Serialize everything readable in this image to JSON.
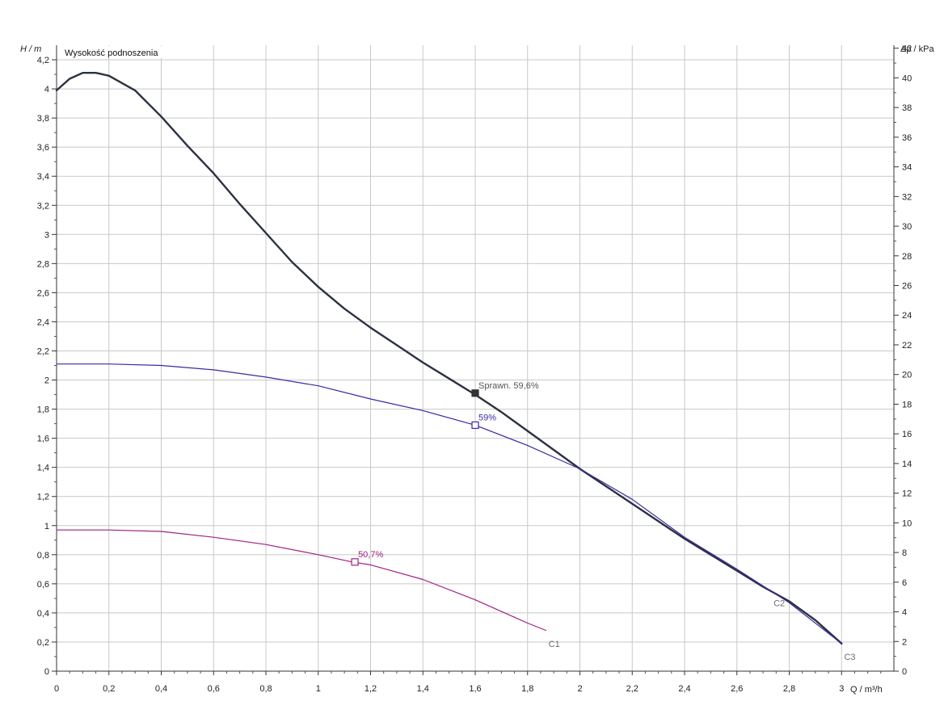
{
  "chart_data": {
    "type": "line",
    "title": "Wysokość podnoszenia",
    "ylabel": "H / m",
    "ylabel_right": "Δp / kPa",
    "xlabel": "Q / m³/h",
    "xlim": [
      0,
      3.2
    ],
    "ylim": [
      0,
      4.3
    ],
    "ylim_right": [
      0,
      42.2
    ],
    "grid": true,
    "x_ticks": [
      "0",
      "0,2",
      "0,4",
      "0,6",
      "0,8",
      "1",
      "1,2",
      "1,4",
      "1,6",
      "1,8",
      "2",
      "2,2",
      "2,4",
      "2,6",
      "2,8",
      "3"
    ],
    "y_ticks": [
      "0",
      "0,2",
      "0,4",
      "0,6",
      "0,8",
      "1",
      "1,2",
      "1,4",
      "1,6",
      "1,8",
      "2",
      "2,2",
      "2,4",
      "2,6",
      "2,8",
      "3",
      "3,2",
      "3,4",
      "3,6",
      "3,8",
      "4",
      "4,2"
    ],
    "y_ticks_right": [
      "0",
      "2",
      "4",
      "6",
      "8",
      "10",
      "12",
      "14",
      "16",
      "18",
      "20",
      "22",
      "24",
      "26",
      "28",
      "30",
      "32",
      "34",
      "36",
      "38",
      "40",
      "42"
    ],
    "series": [
      {
        "name": "C3",
        "color": "#2b3140",
        "x": [
          0,
          0.05,
          0.1,
          0.15,
          0.2,
          0.3,
          0.4,
          0.5,
          0.6,
          0.7,
          0.8,
          0.9,
          1.0,
          1.1,
          1.2,
          1.3,
          1.4,
          1.5,
          1.6,
          1.7,
          1.8,
          1.9,
          2.0,
          2.1,
          2.2,
          2.3,
          2.4,
          2.5,
          2.6,
          2.7,
          2.8,
          2.9,
          3.0
        ],
        "y": [
          3.99,
          4.07,
          4.11,
          4.11,
          4.09,
          3.99,
          3.81,
          3.61,
          3.42,
          3.21,
          3.01,
          2.81,
          2.64,
          2.49,
          2.36,
          2.24,
          2.12,
          2.01,
          1.9,
          1.78,
          1.65,
          1.52,
          1.39,
          1.27,
          1.15,
          1.03,
          0.91,
          0.8,
          0.69,
          0.58,
          0.48,
          0.35,
          0.19
        ],
        "label": "C3"
      },
      {
        "name": "C2",
        "color": "#3b2aa3",
        "x": [
          0,
          0.2,
          0.4,
          0.6,
          0.8,
          1.0,
          1.2,
          1.4,
          1.6,
          1.8,
          2.0,
          2.2,
          2.4,
          2.6,
          2.8,
          3.0
        ],
        "y": [
          2.11,
          2.11,
          2.1,
          2.07,
          2.02,
          1.96,
          1.87,
          1.79,
          1.69,
          1.55,
          1.39,
          1.18,
          0.92,
          0.7,
          0.47,
          0.19
        ],
        "label": "C2"
      },
      {
        "name": "C1",
        "color": "#a01f86",
        "x": [
          0,
          0.2,
          0.4,
          0.6,
          0.8,
          1.0,
          1.13,
          1.2,
          1.4,
          1.6,
          1.8,
          1.87
        ],
        "y": [
          0.97,
          0.97,
          0.96,
          0.92,
          0.87,
          0.8,
          0.75,
          0.73,
          0.63,
          0.49,
          0.33,
          0.28
        ],
        "label": "C1"
      }
    ],
    "markers": [
      {
        "x": 1.6,
        "y": 1.91,
        "label": "Sprawn.  59,6%",
        "color": "#333333",
        "filled": true
      },
      {
        "x": 1.6,
        "y": 1.69,
        "label": "59%",
        "color": "#3b2aa3",
        "filled": false
      },
      {
        "x": 1.14,
        "y": 0.75,
        "label": "50,7%",
        "color": "#a01f86",
        "filled": false
      }
    ],
    "curve_labels": [
      {
        "text": "C1",
        "x": 1.88,
        "y": 0.19,
        "color": "#6c6c6c"
      },
      {
        "text": "C2",
        "x": 2.74,
        "y": 0.47,
        "color": "#6c6c6c"
      },
      {
        "text": "C3",
        "x": 3.01,
        "y": 0.1,
        "color": "#6c6c6c"
      }
    ]
  }
}
